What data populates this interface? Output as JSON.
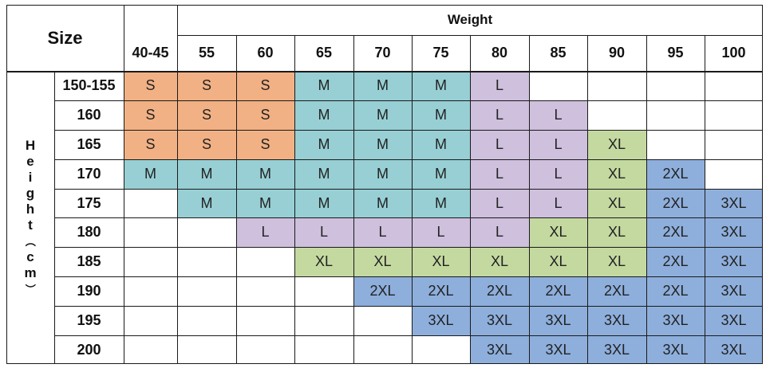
{
  "table": {
    "corner_label": "Size",
    "weight_label": "Weight",
    "height_label": "Height（cm）",
    "weights": [
      "40-45",
      "55",
      "60",
      "65",
      "70",
      "75",
      "80",
      "85",
      "90",
      "95",
      "100"
    ],
    "heights": [
      "150-155",
      "160",
      "165",
      "170",
      "175",
      "180",
      "185",
      "190",
      "195",
      "200"
    ],
    "sizes": [
      [
        "S",
        "S",
        "S",
        "M",
        "M",
        "M",
        "L",
        "",
        "",
        "",
        ""
      ],
      [
        "S",
        "S",
        "S",
        "M",
        "M",
        "M",
        "L",
        "L",
        "",
        "",
        ""
      ],
      [
        "S",
        "S",
        "S",
        "M",
        "M",
        "M",
        "L",
        "L",
        "XL",
        "",
        ""
      ],
      [
        "M",
        "M",
        "M",
        "M",
        "M",
        "M",
        "L",
        "L",
        "XL",
        "2XL",
        ""
      ],
      [
        "",
        "M",
        "M",
        "M",
        "M",
        "M",
        "L",
        "L",
        "XL",
        "2XL",
        "3XL"
      ],
      [
        "",
        "",
        "L",
        "L",
        "L",
        "L",
        "L",
        "XL",
        "XL",
        "2XL",
        "3XL"
      ],
      [
        "",
        "",
        "",
        "XL",
        "XL",
        "XL",
        "XL",
        "XL",
        "XL",
        "2XL",
        "3XL"
      ],
      [
        "",
        "",
        "",
        "",
        "2XL",
        "2XL",
        "2XL",
        "2XL",
        "2XL",
        "2XL",
        "3XL"
      ],
      [
        "",
        "",
        "",
        "",
        "",
        "3XL",
        "3XL",
        "3XL",
        "3XL",
        "3XL",
        "3XL"
      ],
      [
        "",
        "",
        "",
        "",
        "",
        "",
        "3XL",
        "3XL",
        "3XL",
        "3XL",
        "3XL"
      ]
    ]
  },
  "colors": {
    "S": "#f2b184",
    "M": "#97cfd4",
    "L": "#cfc0de",
    "XL": "#c4d9a0",
    "2XL": "#8eafdc",
    "3XL": "#8eafdc",
    "empty": "#ffffff"
  }
}
